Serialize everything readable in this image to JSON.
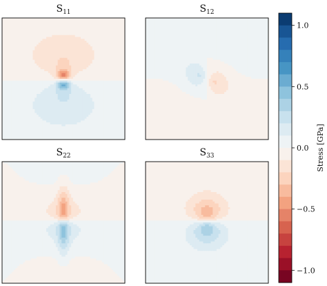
{
  "chart_data": [
    {
      "type": "heatmap",
      "title": "S",
      "title_sub": "11",
      "field": "S11",
      "colormap": "RdBu (blue positive, red negative)"
    },
    {
      "type": "heatmap",
      "title": "S",
      "title_sub": "12",
      "field": "S12",
      "colormap": "RdBu (blue positive, red negative)"
    },
    {
      "type": "heatmap",
      "title": "S",
      "title_sub": "22",
      "field": "S22",
      "colormap": "RdBu (blue positive, red negative)"
    },
    {
      "type": "heatmap",
      "title": "S",
      "title_sub": "33",
      "field": "S33",
      "colormap": "RdBu (blue positive, red negative)"
    }
  ],
  "colorbar": {
    "label": "Stress [GPa]",
    "range": [
      -1.1,
      1.1
    ],
    "levels": 22,
    "ticks": [
      "1.0",
      "0.5",
      "0.0",
      "−0.5",
      "−1.0"
    ],
    "tick_values": [
      1.0,
      0.5,
      0.0,
      -0.5,
      -1.0
    ],
    "colors": [
      "#053061",
      "#2166ac",
      "#4393c3",
      "#92c5de",
      "#d1e5f0",
      "#f7f7f7",
      "#fddbc7",
      "#f4a582",
      "#d6604d",
      "#b2182b",
      "#67001f"
    ]
  }
}
